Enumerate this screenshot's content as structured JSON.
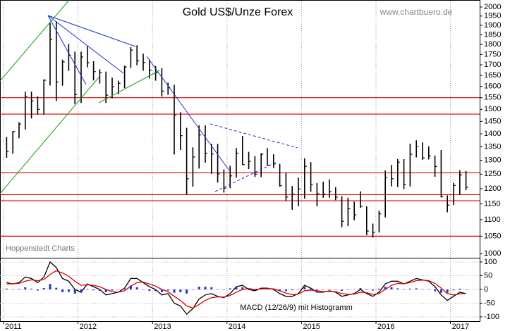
{
  "chart_data": [
    {
      "type": "hlc",
      "title": "Gold US$/Unze Forex",
      "source": "www.chartbuero.de",
      "annotation": "Hoppenstedt Charts",
      "log": true,
      "color": "#000000",
      "categories": [
        "2011",
        null,
        null,
        null,
        null,
        null,
        null,
        null,
        null,
        null,
        null,
        null,
        "2012",
        null,
        null,
        null,
        null,
        null,
        null,
        null,
        null,
        null,
        null,
        null,
        "2013",
        null,
        null,
        null,
        null,
        null,
        null,
        null,
        null,
        null,
        null,
        null,
        "2014",
        null,
        null,
        null,
        null,
        null,
        null,
        null,
        null,
        null,
        null,
        null,
        "2015",
        null,
        null,
        null,
        null,
        null,
        null,
        null,
        null,
        null,
        null,
        null,
        "2016",
        null,
        null,
        null,
        null,
        null,
        null,
        null,
        null,
        null,
        null,
        null,
        "2017",
        null,
        null
      ],
      "high": [
        1388,
        1411,
        1447,
        1576,
        1577,
        1556,
        1632,
        1912,
        1921,
        1725,
        1803,
        1764,
        1764,
        1791,
        1718,
        1679,
        1668,
        1640,
        1626,
        1696,
        1787,
        1796,
        1754,
        1726,
        1695,
        1684,
        1617,
        1607,
        1488,
        1424,
        1348,
        1434,
        1434,
        1362,
        1361,
        1267,
        1280,
        1345,
        1392,
        1331,
        1315,
        1326,
        1345,
        1322,
        1287,
        1255,
        1209,
        1238,
        1307,
        1293,
        1219,
        1224,
        1232,
        1205,
        1175,
        1170,
        1157,
        1191,
        1142,
        1088,
        1128,
        1263,
        1283,
        1304,
        1304,
        1362,
        1375,
        1367,
        1352,
        1317,
        1338,
        1178,
        1220,
        1264,
        1261
      ],
      "low": [
        1309,
        1324,
        1383,
        1417,
        1462,
        1478,
        1478,
        1604,
        1535,
        1603,
        1671,
        1522,
        1527,
        1688,
        1627,
        1613,
        1527,
        1547,
        1565,
        1592,
        1686,
        1698,
        1672,
        1636,
        1626,
        1555,
        1563,
        1321,
        1338,
        1180,
        1207,
        1270,
        1291,
        1251,
        1221,
        1187,
        1202,
        1238,
        1283,
        1268,
        1240,
        1240,
        1280,
        1272,
        1207,
        1160,
        1131,
        1142,
        1167,
        1190,
        1142,
        1170,
        1170,
        1162,
        1077,
        1080,
        1098,
        1137,
        1053,
        1046,
        1061,
        1107,
        1208,
        1206,
        1199,
        1208,
        1310,
        1301,
        1303,
        1241,
        1171,
        1123,
        1146,
        1180,
        1195
      ],
      "close": [
        1332,
        1409,
        1439,
        1556,
        1536,
        1500,
        1628,
        1825,
        1620,
        1714,
        1746,
        1564,
        1738,
        1710,
        1668,
        1663,
        1561,
        1598,
        1614,
        1690,
        1772,
        1719,
        1711,
        1675,
        1662,
        1579,
        1596,
        1476,
        1393,
        1234,
        1312,
        1396,
        1326,
        1323,
        1251,
        1202,
        1244,
        1326,
        1284,
        1296,
        1250,
        1322,
        1282,
        1287,
        1210,
        1172,
        1182,
        1199,
        1278,
        1213,
        1183,
        1182,
        1190,
        1172,
        1095,
        1134,
        1115,
        1142,
        1065,
        1061,
        1118,
        1238,
        1234,
        1293,
        1215,
        1322,
        1351,
        1309,
        1316,
        1277,
        1173,
        1146,
        1211,
        1248,
        1205
      ],
      "ylim": [
        1000,
        2000
      ],
      "yticks": [
        1000,
        1050,
        1100,
        1150,
        1200,
        1250,
        1300,
        1350,
        1400,
        1450,
        1500,
        1550,
        1600,
        1650,
        1700,
        1750,
        1800,
        1850,
        1900,
        1950,
        2000
      ],
      "hlines": {
        "color": "#dd0000",
        "values": [
          1550,
          1480,
          1255,
          1180,
          1160,
          1050
        ]
      }
    },
    {
      "type": "macd",
      "title": "MACD (12/26/9) mit Histogramm",
      "series": [
        {
          "color": "#000000",
          "values": [
            25,
            20,
            25,
            45,
            40,
            25,
            45,
            100,
            80,
            40,
            30,
            0,
            -10,
            20,
            10,
            0,
            -20,
            -15,
            -10,
            5,
            40,
            40,
            25,
            10,
            0,
            -20,
            -15,
            -50,
            -60,
            -90,
            -70,
            -35,
            -20,
            -15,
            -25,
            -30,
            -15,
            10,
            15,
            0,
            -5,
            5,
            5,
            0,
            -15,
            -25,
            -25,
            -15,
            15,
            5,
            -10,
            -10,
            -5,
            -10,
            -25,
            -20,
            -15,
            0,
            -15,
            -25,
            -10,
            20,
            30,
            30,
            20,
            30,
            40,
            35,
            30,
            10,
            -20,
            -40,
            -25,
            -10,
            -15
          ]
        },
        {
          "color": "#dd0000",
          "values": [
            20,
            21,
            22,
            30,
            35,
            32,
            36,
            55,
            68,
            60,
            48,
            30,
            15,
            17,
            15,
            10,
            0,
            -8,
            -10,
            -5,
            12,
            25,
            27,
            20,
            12,
            0,
            -8,
            -25,
            -40,
            -60,
            -68,
            -55,
            -40,
            -30,
            -27,
            -28,
            -22,
            -10,
            0,
            3,
            0,
            2,
            3,
            2,
            -5,
            -13,
            -19,
            -17,
            -5,
            -2,
            -5,
            -8,
            -7,
            -8,
            -15,
            -18,
            -17,
            -10,
            -12,
            -18,
            -15,
            0,
            15,
            22,
            21,
            25,
            32,
            34,
            32,
            22,
            5,
            -15,
            -20,
            -16,
            -15
          ]
        },
        {
          "color": "#2233cc",
          "type": "bar",
          "values": [
            3,
            0,
            2,
            8,
            3,
            -4,
            5,
            20,
            6,
            -10,
            -9,
            -15,
            -12,
            2,
            -3,
            -5,
            -10,
            -4,
            0,
            5,
            14,
            8,
            -1,
            -5,
            -6,
            -10,
            -4,
            -12,
            -10,
            -15,
            -1,
            10,
            10,
            8,
            1,
            -1,
            4,
            10,
            8,
            -2,
            -3,
            2,
            1,
            -1,
            -5,
            -6,
            -3,
            1,
            10,
            4,
            -3,
            -1,
            1,
            -1,
            -5,
            -1,
            1,
            5,
            -2,
            -4,
            3,
            10,
            8,
            4,
            0,
            3,
            4,
            1,
            -1,
            -6,
            -12,
            -12,
            -3,
            3,
            0
          ]
        }
      ],
      "ylim": [
        -100,
        100
      ],
      "yticks": [
        -100,
        -50,
        0,
        50,
        100
      ],
      "grid": true
    }
  ]
}
